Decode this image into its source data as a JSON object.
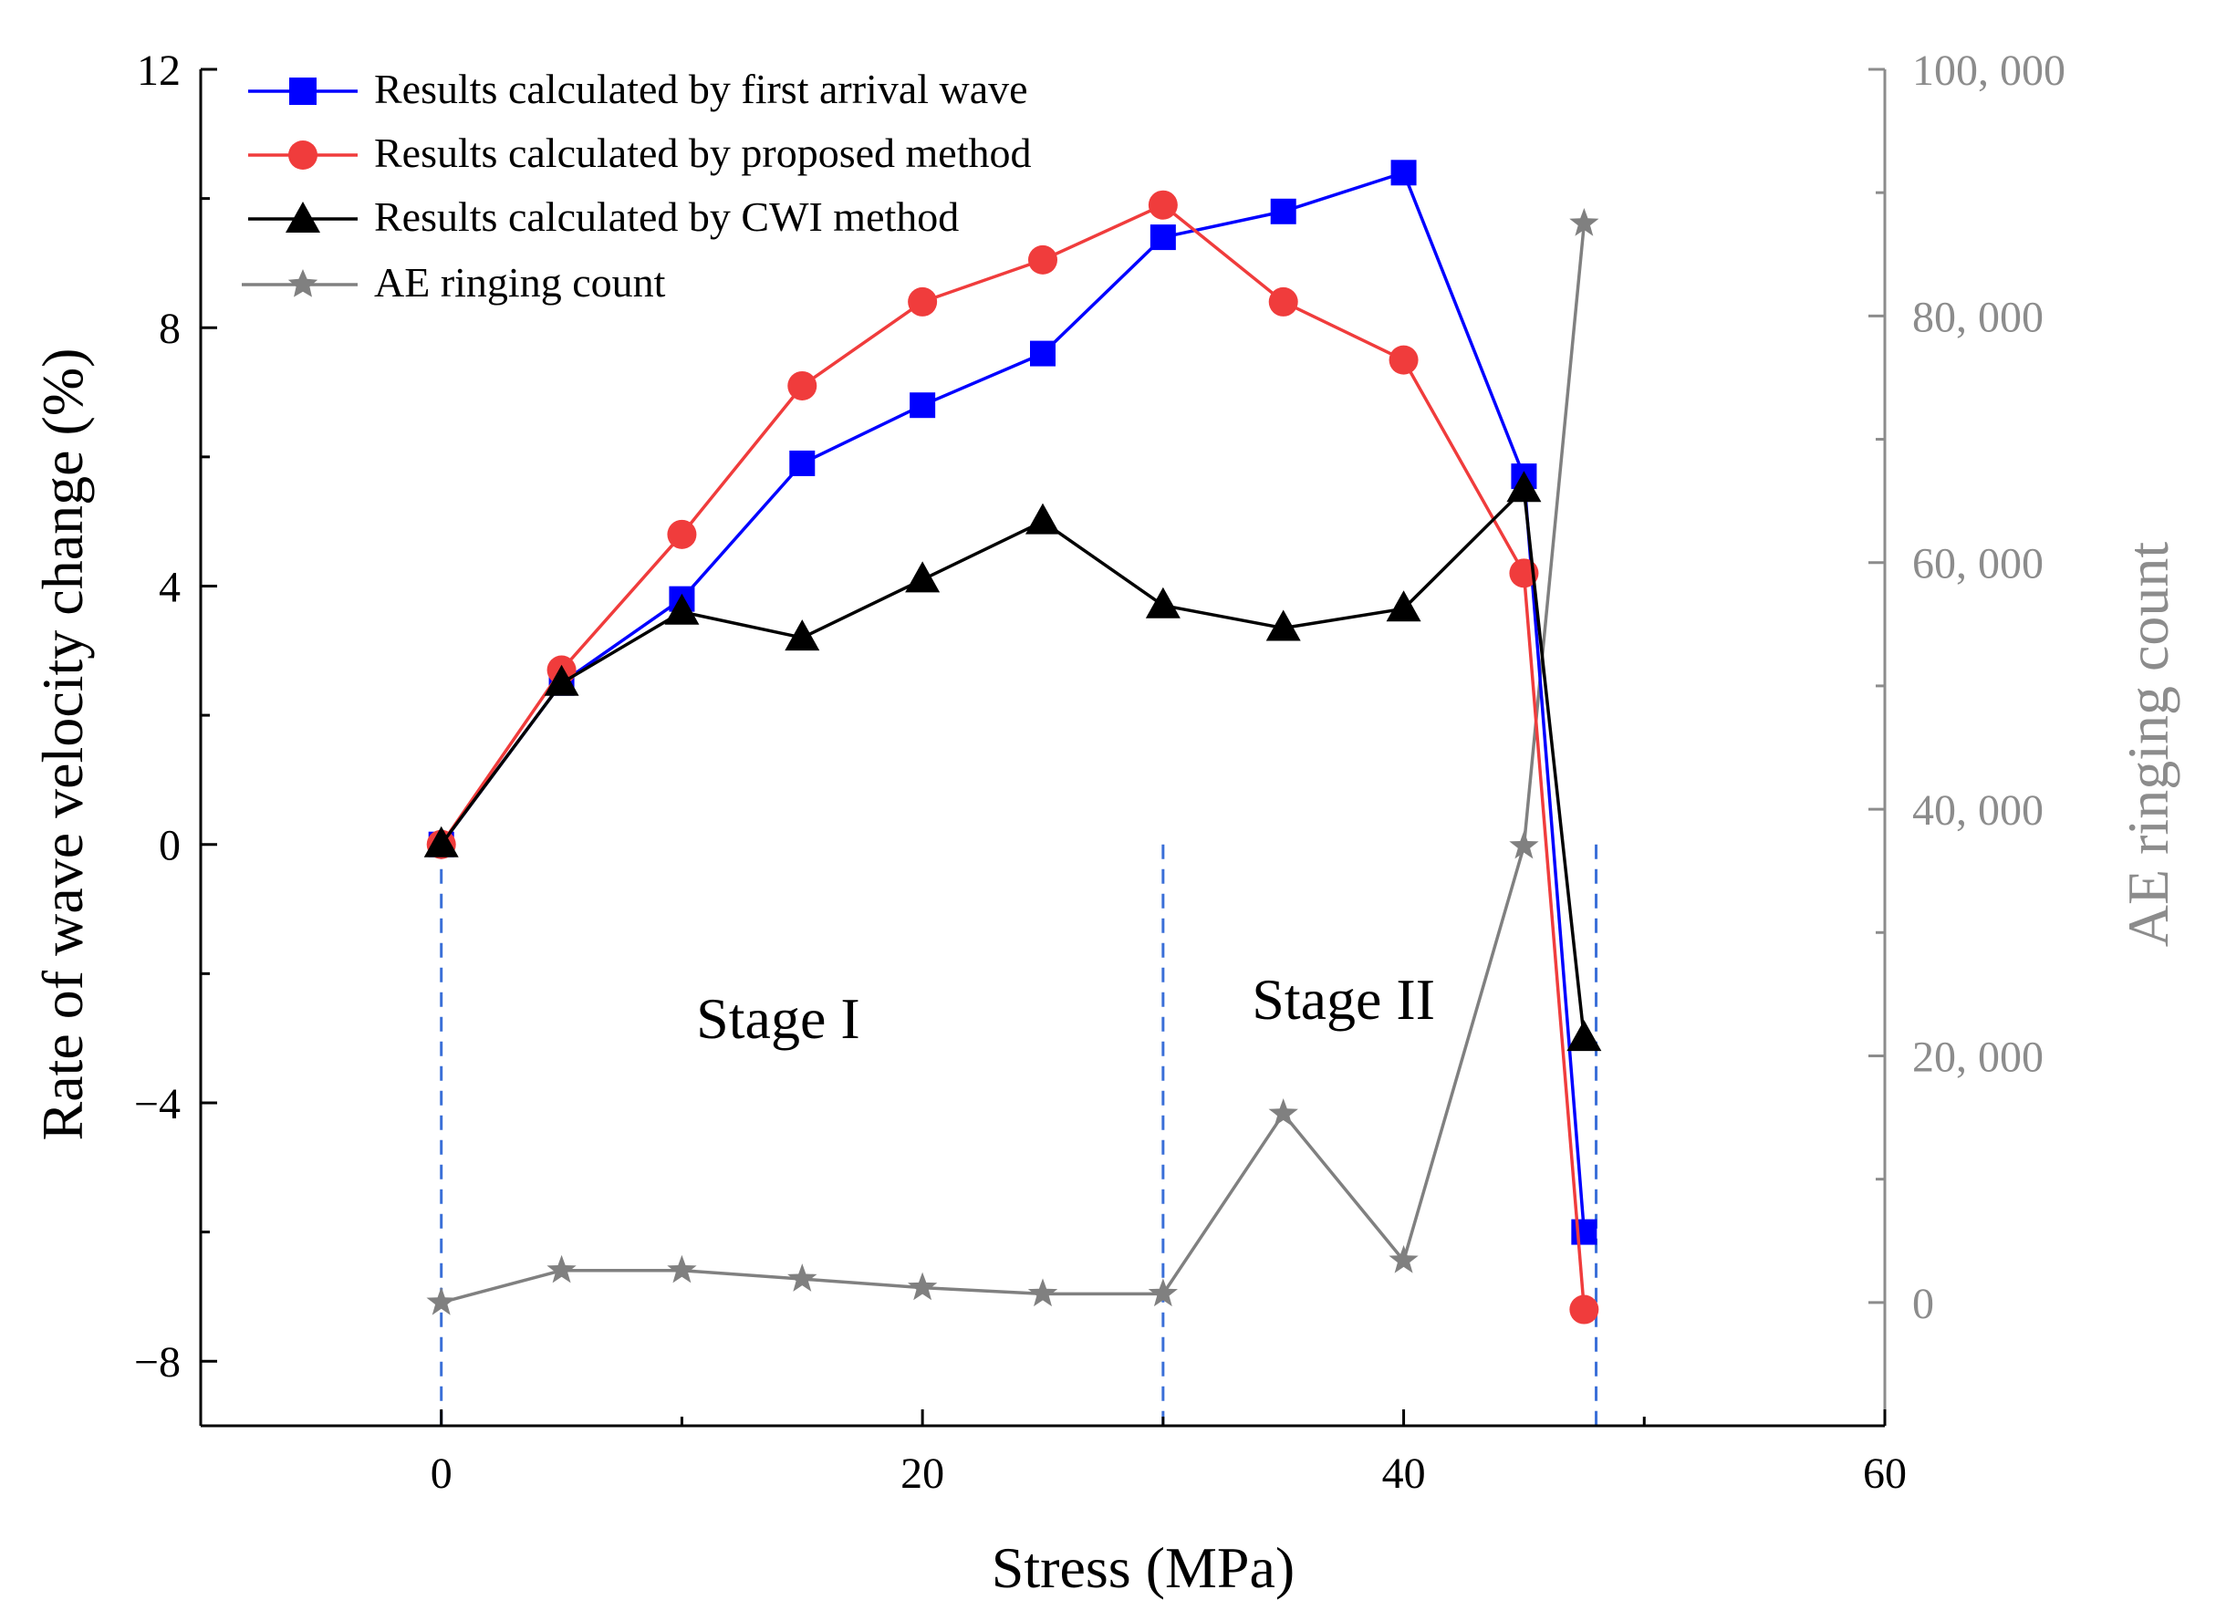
{
  "chart_data": {
    "type": "line",
    "title": "",
    "xlabel": "Stress (MPa)",
    "ylabel": "Rate of wave velocity change (%)",
    "y2label": "AE ringing count",
    "xlim": [
      -10,
      60
    ],
    "ylim": [
      -9,
      12
    ],
    "y2lim": [
      -10000,
      100000
    ],
    "x_ticks": [
      0,
      20,
      40,
      60
    ],
    "y_ticks": [
      -8,
      -4,
      0,
      4,
      8,
      12
    ],
    "y_tick_labels": [
      "−8",
      "−4",
      "0",
      "4",
      "8",
      "12"
    ],
    "y2_ticks": [
      0,
      20000,
      40000,
      60000,
      80000,
      100000
    ],
    "y2_tick_labels": [
      "0",
      "20, 000",
      "40, 000",
      "60, 000",
      "80, 000",
      "100, 000"
    ],
    "grid": false,
    "legend_position": "top-left",
    "stage_lines": [
      0,
      30,
      48
    ],
    "annotations": [
      {
        "text": "Stage I",
        "x": 14,
        "y": -3.0
      },
      {
        "text": "Stage II",
        "x": 37.5,
        "y": -2.7
      }
    ],
    "series": [
      {
        "name": "Results calculated by first arrival wave",
        "axis": "left",
        "color": "#0000ff",
        "marker": "square",
        "x": [
          0,
          5,
          10,
          15,
          20,
          25,
          30,
          35,
          40,
          45,
          47.5
        ],
        "values": [
          0,
          2.5,
          3.8,
          5.9,
          6.8,
          7.6,
          9.4,
          9.8,
          10.4,
          5.7,
          -6.0
        ]
      },
      {
        "name": "Results calculated by proposed method",
        "axis": "left",
        "color": "#f03c3c",
        "marker": "circle",
        "x": [
          0,
          5,
          10,
          15,
          20,
          25,
          30,
          35,
          40,
          45,
          47.5
        ],
        "values": [
          0,
          2.7,
          4.8,
          7.1,
          8.4,
          9.05,
          9.9,
          8.4,
          7.5,
          4.2,
          -7.2
        ]
      },
      {
        "name": "Results calculated by CWI method",
        "axis": "left",
        "color": "#000000",
        "marker": "triangle",
        "x": [
          0,
          5,
          10,
          15,
          20,
          25,
          30,
          35,
          40,
          45,
          47.5
        ],
        "values": [
          0,
          2.5,
          3.6,
          3.2,
          4.1,
          5.0,
          3.7,
          3.35,
          3.65,
          5.5,
          -3.0
        ]
      },
      {
        "name": "AE ringing count",
        "axis": "right",
        "color": "#808080",
        "marker": "star",
        "x": [
          0,
          5,
          10,
          15,
          20,
          25,
          30,
          35,
          40,
          45,
          47.5
        ],
        "values": [
          0,
          2600,
          2600,
          1900,
          1200,
          700,
          700,
          15300,
          3400,
          37000,
          87500
        ]
      }
    ]
  }
}
